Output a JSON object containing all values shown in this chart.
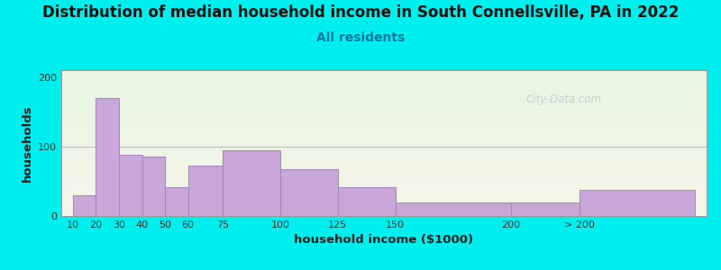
{
  "title": "Distribution of median household income in South Connellsville, PA in 2022",
  "subtitle": "All residents",
  "xlabel": "household income ($1000)",
  "ylabel": "households",
  "background_outer": "#00EEEE",
  "bar_color": "#C8A8D8",
  "bar_edge_color": "#A888C0",
  "categories": [
    "10",
    "20",
    "30",
    "40",
    "50",
    "60",
    "75",
    "100",
    "125",
    "150",
    "200",
    "> 200"
  ],
  "bin_left": [
    10,
    20,
    30,
    40,
    50,
    60,
    75,
    100,
    125,
    150,
    200,
    230
  ],
  "bin_right": [
    20,
    30,
    40,
    50,
    60,
    75,
    100,
    125,
    150,
    200,
    230,
    280
  ],
  "values": [
    30,
    170,
    88,
    85,
    42,
    72,
    95,
    67,
    42,
    20,
    20,
    38
  ],
  "ylim": [
    0,
    210
  ],
  "yticks": [
    0,
    100,
    200
  ],
  "xtick_positions": [
    10,
    20,
    30,
    40,
    50,
    60,
    75,
    100,
    125,
    150,
    200,
    230
  ],
  "xtick_labels": [
    "10",
    "20",
    "30",
    "40",
    "50",
    "60",
    "75",
    "100",
    "125",
    "150",
    "200",
    "> 200"
  ],
  "xlim": [
    5,
    285
  ],
  "watermark": "City-Data.com",
  "title_fontsize": 12,
  "subtitle_fontsize": 10,
  "axis_label_fontsize": 9.5
}
